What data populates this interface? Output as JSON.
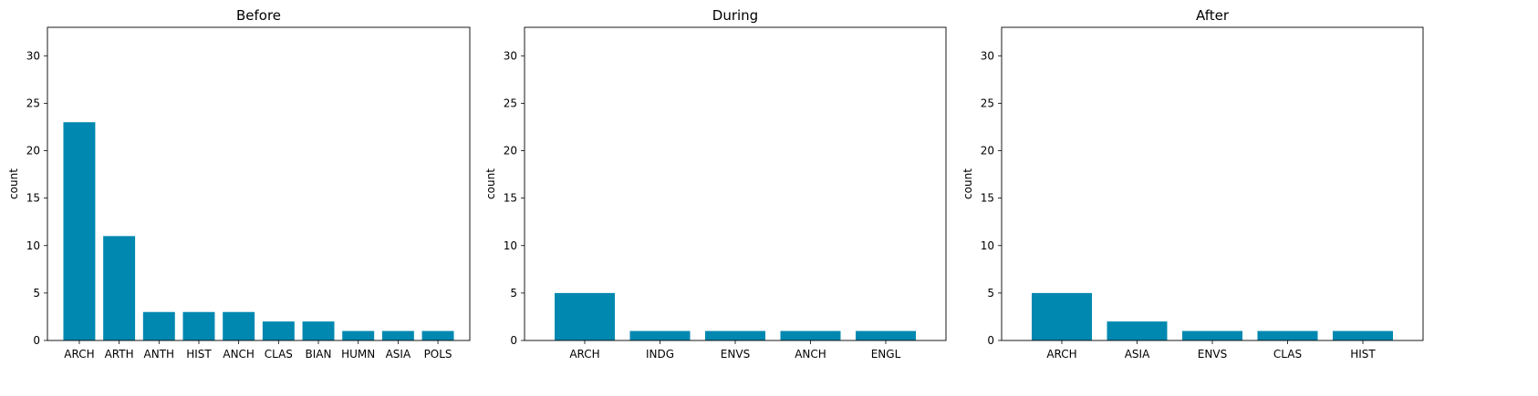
{
  "colors": {
    "bar": "#0088b0",
    "axis": "#000000",
    "background": "#ffffff"
  },
  "chart_data": [
    {
      "type": "bar",
      "title": "Before",
      "xlabel": "",
      "ylabel": "count",
      "ylim": [
        0,
        33
      ],
      "yticks": [
        0,
        5,
        10,
        15,
        20,
        25,
        30
      ],
      "grid": false,
      "categories": [
        "ARCH",
        "ARTH",
        "ANTH",
        "HIST",
        "ANCH",
        "CLAS",
        "BIAN",
        "HUMN",
        "ASIA",
        "POLS"
      ],
      "values": [
        23,
        11,
        3,
        3,
        3,
        2,
        2,
        1,
        1,
        1
      ]
    },
    {
      "type": "bar",
      "title": "During",
      "xlabel": "",
      "ylabel": "count",
      "ylim": [
        0,
        33
      ],
      "yticks": [
        0,
        5,
        10,
        15,
        20,
        25,
        30
      ],
      "grid": false,
      "categories": [
        "ARCH",
        "INDG",
        "ENVS",
        "ANCH",
        "ENGL"
      ],
      "values": [
        5,
        1,
        1,
        1,
        1
      ]
    },
    {
      "type": "bar",
      "title": "After",
      "xlabel": "",
      "ylabel": "count",
      "ylim": [
        0,
        33
      ],
      "yticks": [
        0,
        5,
        10,
        15,
        20,
        25,
        30
      ],
      "grid": false,
      "categories": [
        "ARCH",
        "ASIA",
        "ENVS",
        "CLAS",
        "HIST"
      ],
      "values": [
        5,
        2,
        1,
        1,
        1
      ]
    }
  ]
}
